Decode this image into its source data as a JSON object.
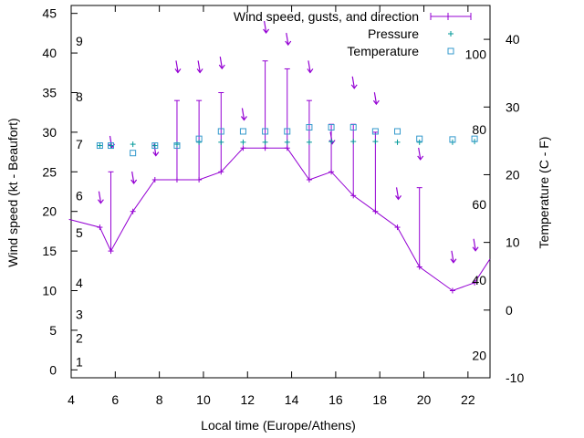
{
  "chart_data": {
    "type": "line",
    "xlabel": "Local time (Europe/Athens)",
    "ylabel": "Wind speed (kt - Beaufort)",
    "y2label": "Temperature (C - F)",
    "xlim": [
      4,
      23
    ],
    "ylim": [
      -1,
      46
    ],
    "y2lim": [
      -10,
      45
    ],
    "x_ticks": [
      4,
      6,
      8,
      10,
      12,
      14,
      16,
      18,
      20,
      22
    ],
    "y_ticks": [
      0,
      5,
      10,
      15,
      20,
      25,
      30,
      35,
      40,
      45
    ],
    "y2_ticks": [
      -10,
      0,
      10,
      20,
      30,
      40
    ],
    "beaufort_labels": [
      {
        "label": "1",
        "y": 1
      },
      {
        "label": "2",
        "y": 4
      },
      {
        "label": "3",
        "y": 7
      },
      {
        "label": "4",
        "y": 11
      },
      {
        "label": "5",
        "y": 17.3
      },
      {
        "label": "6",
        "y": 22
      },
      {
        "label": "7",
        "y": 28.5
      },
      {
        "label": "8",
        "y": 34.5
      },
      {
        "label": "9",
        "y": 41.5
      }
    ],
    "fahrenheit_labels": [
      {
        "label": "20",
        "y": -6.7
      },
      {
        "label": "40",
        "y": 4.4
      },
      {
        "label": "60",
        "y": 15.6
      },
      {
        "label": "80",
        "y": 26.7
      },
      {
        "label": "100",
        "y": 37.8
      }
    ],
    "series": [
      {
        "name": "Wind speed, gusts, and direction",
        "color": "#9400d3",
        "x": [
          3.9,
          5.3,
          5.8,
          6.8,
          7.8,
          8.8,
          9.8,
          10.8,
          11.8,
          12.8,
          13.8,
          14.8,
          15.8,
          16.8,
          17.8,
          18.8,
          19.8,
          21.3,
          22.3,
          23.0
        ],
        "y": [
          19,
          18,
          15,
          20,
          24,
          24,
          24,
          25,
          28,
          28,
          28,
          24,
          25,
          22,
          20,
          18,
          13,
          10,
          11,
          14
        ],
        "gusts": [
          null,
          null,
          25,
          null,
          null,
          34,
          34,
          35,
          null,
          39,
          38,
          34,
          31,
          31,
          30,
          null,
          23,
          null,
          null,
          null
        ],
        "direction_arrow_y": [
          null,
          21.5,
          28.5,
          24,
          27.5,
          38,
          38,
          38.5,
          32,
          43,
          41.5,
          38,
          29,
          36,
          34,
          22,
          27,
          14,
          15.5,
          null
        ]
      },
      {
        "name": "Pressure",
        "color": "#009999",
        "x": [
          5.3,
          5.8,
          6.8,
          7.8,
          8.8,
          9.8,
          10.8,
          11.8,
          12.8,
          13.8,
          14.8,
          15.8,
          16.8,
          17.8,
          18.8,
          19.8,
          21.3,
          22.3
        ],
        "y2": [
          24.3,
          24.3,
          24.5,
          24.3,
          24.5,
          24.8,
          24.8,
          24.8,
          24.8,
          24.8,
          24.8,
          24.9,
          24.9,
          24.9,
          24.8,
          24.8,
          24.8,
          24.9
        ]
      },
      {
        "name": "Temperature",
        "color": "#3399cc",
        "x": [
          5.3,
          5.8,
          6.8,
          7.8,
          8.8,
          9.8,
          10.8,
          11.8,
          12.8,
          13.8,
          14.8,
          15.8,
          16.8,
          17.8,
          18.8,
          19.8,
          21.3,
          22.3
        ],
        "y2": [
          24.3,
          24.3,
          23.2,
          24.3,
          24.3,
          25.3,
          26.4,
          26.4,
          26.4,
          26.4,
          27.0,
          27.0,
          27.0,
          26.4,
          26.4,
          25.3,
          25.2,
          25.3
        ]
      }
    ]
  }
}
